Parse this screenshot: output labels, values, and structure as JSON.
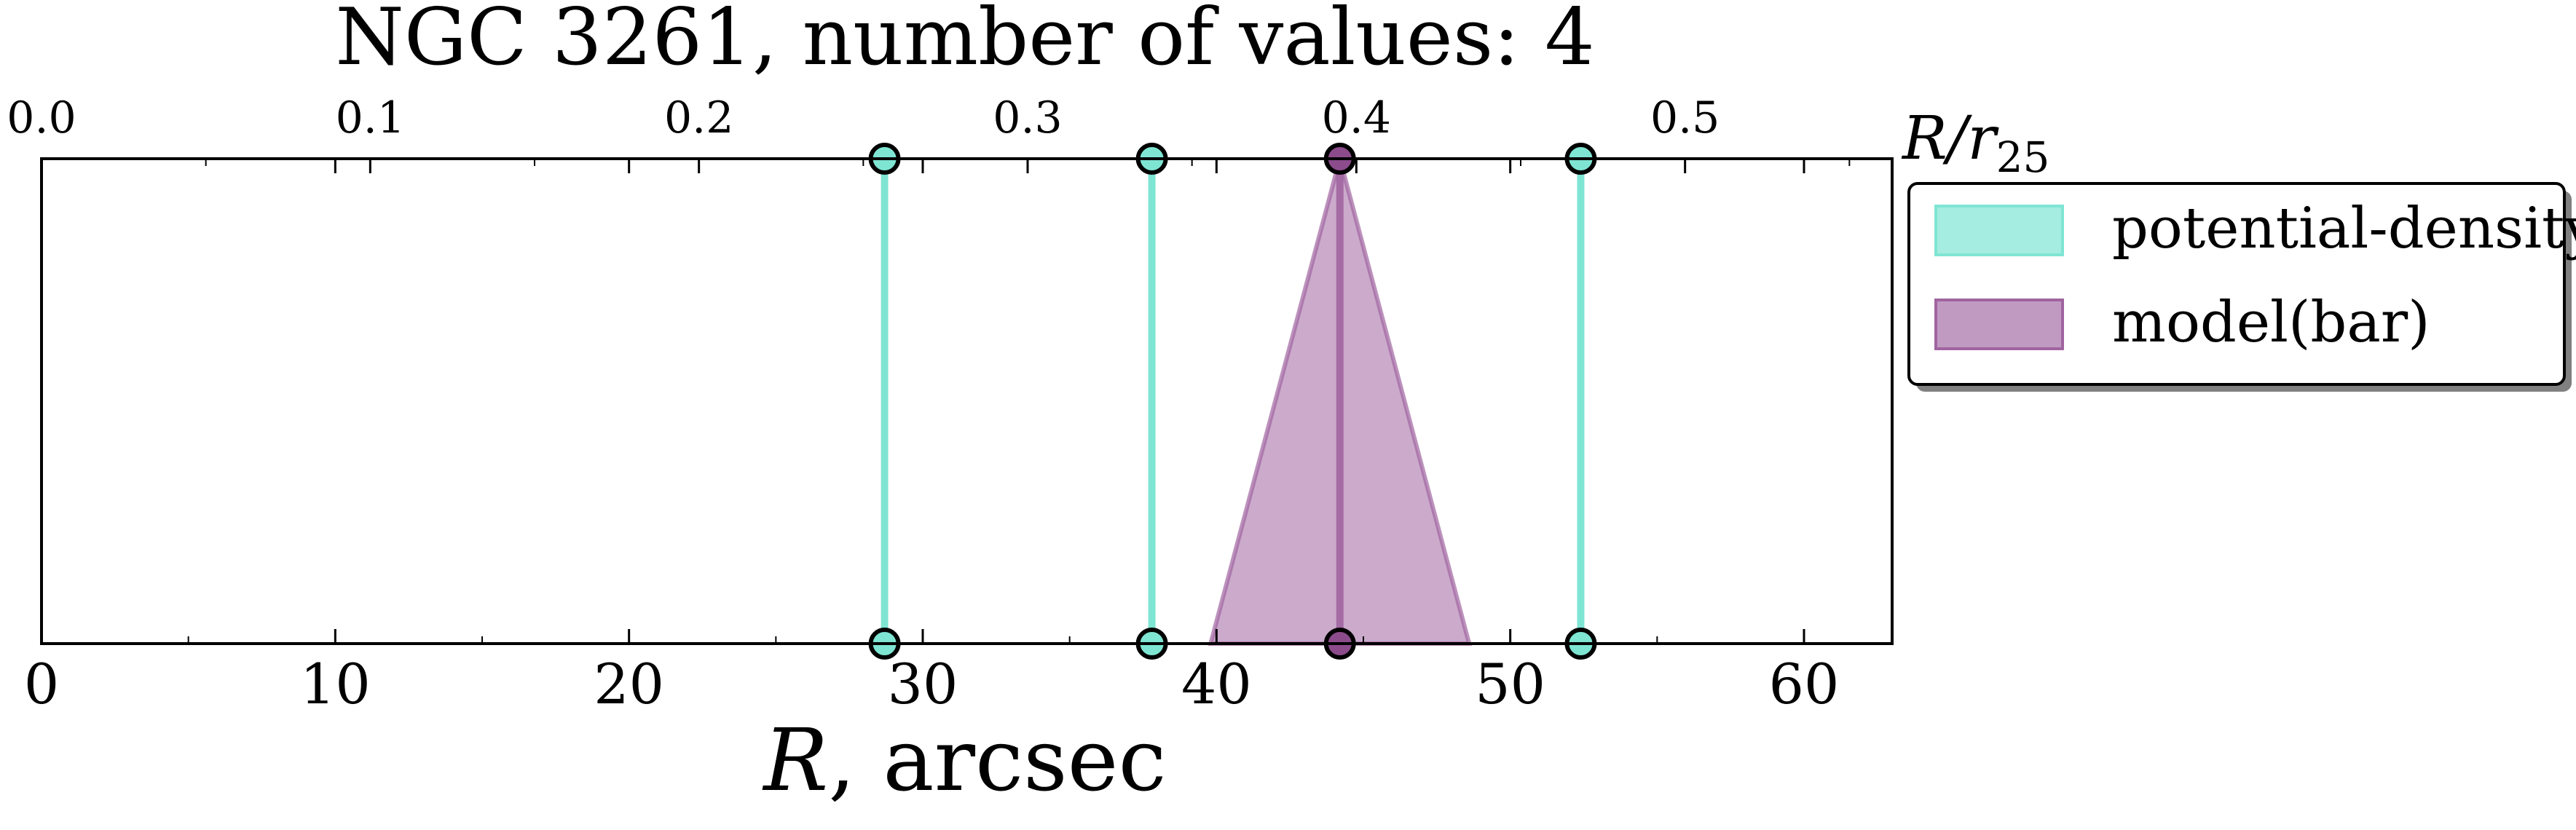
{
  "chart_data": {
    "type": "marker_lines",
    "title": "NGC 3261, number of values: 4",
    "xlabel": "R, arcsec",
    "xlabel_italic": "R",
    "xlabel_rest": ", arcsec",
    "top_axis_label": "R/r25",
    "top_axis_label_base": "R/r",
    "top_axis_label_sub": "25",
    "xlim": [
      0,
      63
    ],
    "x_ticks": [
      0,
      10,
      20,
      30,
      40,
      50,
      60
    ],
    "x_tick_labels": [
      "0",
      "10",
      "20",
      "30",
      "40",
      "50",
      "60"
    ],
    "top_xlim": [
      0.0,
      0.563
    ],
    "top_ticks": [
      0.0,
      0.1,
      0.2,
      0.3,
      0.4,
      0.5
    ],
    "top_tick_labels": [
      "0.0",
      "0.1",
      "0.2",
      "0.3",
      "0.4",
      "0.5"
    ],
    "grid": false,
    "legend_position": "outside-right-top",
    "series": [
      {
        "name": "potential-density",
        "color": "#7fe5d3",
        "type": "vertical-lines",
        "x": [
          28.7,
          37.8,
          52.4
        ]
      },
      {
        "name": "model(bar)",
        "color": "#a064a0",
        "type": "triangle-band",
        "x": [
          44.2
        ],
        "band": [
          39.8,
          48.6
        ]
      }
    ]
  }
}
